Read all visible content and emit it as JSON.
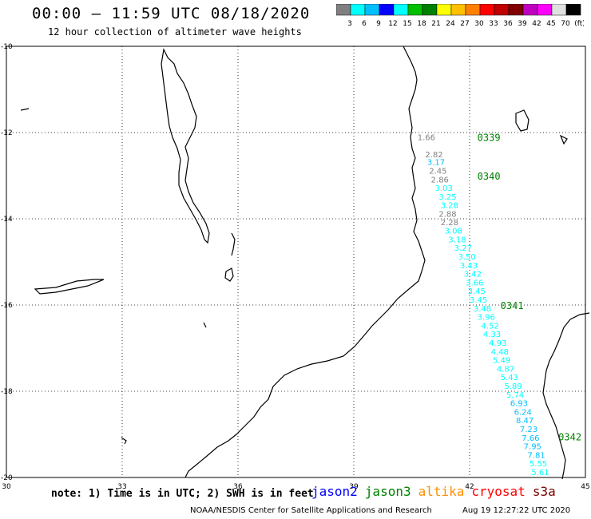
{
  "header": {
    "title": "00:00 – 11:59 UTC 08/18/2020",
    "subtitle": "12 hour collection of altimeter wave heights"
  },
  "colorbar": {
    "colors": [
      "#808080",
      "#00ffff",
      "#00bfff",
      "#0000ff",
      "#00ffff",
      "#00c000",
      "#008000",
      "#ffff00",
      "#ffc000",
      "#ff8000",
      "#ff0000",
      "#c00000",
      "#800000",
      "#c000c0",
      "#ff00ff",
      "#e0e0e0",
      "#000000"
    ],
    "labels": [
      "3",
      "6",
      "9",
      "12",
      "15",
      "18",
      "21",
      "24",
      "27",
      "30",
      "33",
      "36",
      "39",
      "42",
      "45",
      "70",
      "(ft)"
    ]
  },
  "map": {
    "lon_range": [
      30,
      45
    ],
    "lat_range": [
      -20,
      -10
    ],
    "lon_ticks": [
      "30",
      "33",
      "36",
      "39",
      "42",
      "45"
    ],
    "lat_ticks": [
      "-10",
      "-12",
      "-14",
      "-16",
      "-18",
      "-20"
    ],
    "passes": [
      {
        "label": "0339",
        "lon": 42.2,
        "lat": -12.1
      },
      {
        "label": "0340",
        "lon": 42.2,
        "lat": -13.0
      },
      {
        "label": "0341",
        "lon": 42.8,
        "lat": -16.0
      },
      {
        "label": "0342",
        "lon": 44.3,
        "lat": -19.05
      }
    ],
    "track": [
      {
        "v": "1.66",
        "lon": 40.65,
        "lat": -12.1,
        "c": "#808080"
      },
      {
        "v": "2.82",
        "lon": 40.85,
        "lat": -12.5,
        "c": "#808080"
      },
      {
        "v": "3.17",
        "lon": 40.9,
        "lat": -12.68,
        "c": "#00bfff"
      },
      {
        "v": "2.45",
        "lon": 40.95,
        "lat": -12.88,
        "c": "#808080"
      },
      {
        "v": "2.86",
        "lon": 41.0,
        "lat": -13.08,
        "c": "#808080"
      },
      {
        "v": "3.03",
        "lon": 41.1,
        "lat": -13.28,
        "c": "#00ffff"
      },
      {
        "v": "3.25",
        "lon": 41.2,
        "lat": -13.48,
        "c": "#00ffff"
      },
      {
        "v": "3.28",
        "lon": 41.25,
        "lat": -13.68,
        "c": "#00ffff"
      },
      {
        "v": "2.88",
        "lon": 41.2,
        "lat": -13.88,
        "c": "#808080"
      },
      {
        "v": "2.28",
        "lon": 41.25,
        "lat": -14.07,
        "c": "#808080"
      },
      {
        "v": "3.08",
        "lon": 41.35,
        "lat": -14.27,
        "c": "#00ffff"
      },
      {
        "v": "3.18",
        "lon": 41.45,
        "lat": -14.47,
        "c": "#00ffff"
      },
      {
        "v": "3.27",
        "lon": 41.6,
        "lat": -14.67,
        "c": "#00ffff"
      },
      {
        "v": "3.50",
        "lon": 41.7,
        "lat": -14.87,
        "c": "#00ffff"
      },
      {
        "v": "3.43",
        "lon": 41.75,
        "lat": -15.07,
        "c": "#00ffff"
      },
      {
        "v": "3.42",
        "lon": 41.85,
        "lat": -15.27,
        "c": "#00ffff"
      },
      {
        "v": "3.66",
        "lon": 41.9,
        "lat": -15.47,
        "c": "#00ffff"
      },
      {
        "v": "3.45",
        "lon": 41.95,
        "lat": -15.67,
        "c": "#00ffff"
      },
      {
        "v": "3.45",
        "lon": 42.0,
        "lat": -15.87,
        "c": "#00ffff"
      },
      {
        "v": "3.48",
        "lon": 42.1,
        "lat": -16.07,
        "c": "#00ffff"
      },
      {
        "v": "3.96",
        "lon": 42.2,
        "lat": -16.27,
        "c": "#00ffff"
      },
      {
        "v": "4.52",
        "lon": 42.3,
        "lat": -16.47,
        "c": "#00ffff"
      },
      {
        "v": "4.33",
        "lon": 42.35,
        "lat": -16.67,
        "c": "#00ffff"
      },
      {
        "v": "4.93",
        "lon": 42.5,
        "lat": -16.87,
        "c": "#00ffff"
      },
      {
        "v": "4.48",
        "lon": 42.55,
        "lat": -17.07,
        "c": "#00ffff"
      },
      {
        "v": "5.49",
        "lon": 42.6,
        "lat": -17.27,
        "c": "#00ffff"
      },
      {
        "v": "4.87",
        "lon": 42.7,
        "lat": -17.47,
        "c": "#00ffff"
      },
      {
        "v": "5.43",
        "lon": 42.8,
        "lat": -17.67,
        "c": "#00ffff"
      },
      {
        "v": "5.89",
        "lon": 42.9,
        "lat": -17.87,
        "c": "#00ffff"
      },
      {
        "v": "5.74",
        "lon": 42.95,
        "lat": -18.07,
        "c": "#00ffff"
      },
      {
        "v": "6.93",
        "lon": 43.05,
        "lat": -18.27,
        "c": "#00bfff"
      },
      {
        "v": "6.24",
        "lon": 43.15,
        "lat": -18.47,
        "c": "#00bfff"
      },
      {
        "v": "8.47",
        "lon": 43.2,
        "lat": -18.67,
        "c": "#00bfff"
      },
      {
        "v": "7.23",
        "lon": 43.3,
        "lat": -18.87,
        "c": "#00bfff"
      },
      {
        "v": "7.66",
        "lon": 43.35,
        "lat": -19.07,
        "c": "#00bfff"
      },
      {
        "v": "7.95",
        "lon": 43.4,
        "lat": -19.27,
        "c": "#00bfff"
      },
      {
        "v": "7.81",
        "lon": 43.5,
        "lat": -19.47,
        "c": "#00bfff"
      },
      {
        "v": "5.55",
        "lon": 43.55,
        "lat": -19.67,
        "c": "#00ffff"
      },
      {
        "v": "5.61",
        "lon": 43.6,
        "lat": -19.87,
        "c": "#00ffff"
      }
    ]
  },
  "footer": {
    "note": "note: 1) Time is in UTC; 2) SWH is in feet",
    "legend": [
      {
        "label": "jason2",
        "color": "#0000ff"
      },
      {
        "label": "jason3",
        "color": "#008000"
      },
      {
        "label": "altika",
        "color": "#ff9000"
      },
      {
        "label": "cryosat",
        "color": "#ff0000"
      },
      {
        "label": "s3a",
        "color": "#800000"
      }
    ],
    "credit": "NOAA/NESDIS Center for Satellite Applications and Research",
    "date": "Aug 19 12:27:22 UTC 2020"
  }
}
